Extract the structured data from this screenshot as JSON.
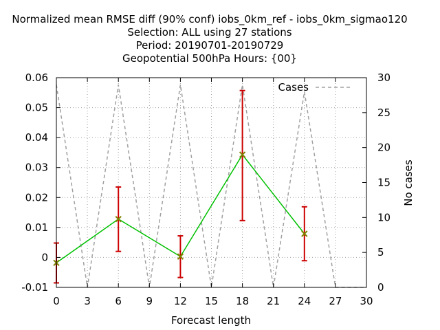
{
  "chart_data": {
    "type": "line",
    "title_lines": [
      "Normalized mean RMSE diff (90% conf) iobs_0km_ref - iobs_0km_sigmao120",
      "Selection: ALL using    27 stations",
      "Period: 20190701-20190729",
      "Geopotential 500hPa   Hours: {00}"
    ],
    "xlabel": "Forecast length",
    "ylabel": "",
    "y2label": "No cases",
    "xlim": [
      0,
      30
    ],
    "ylim": [
      -0.01,
      0.06
    ],
    "y2lim": [
      0,
      30
    ],
    "x_ticks": [
      "0",
      "3",
      "6",
      "9",
      "12",
      "15",
      "18",
      "21",
      "24",
      "27",
      "30"
    ],
    "y_ticks": [
      "-0.01",
      "0",
      "0.01",
      "0.02",
      "0.03",
      "0.04",
      "0.05",
      "0.06"
    ],
    "y2_ticks": [
      "0",
      "5",
      "10",
      "15",
      "20",
      "25",
      "30"
    ],
    "grid": true,
    "series": [
      {
        "name": "",
        "color": "#00c000",
        "marker_color": "#808000",
        "errorbar_color": "#cc0000",
        "x": [
          0,
          6,
          12,
          18,
          24
        ],
        "y": [
          -0.0018,
          0.0128,
          0.0003,
          0.0343,
          0.0079
        ],
        "err_low": [
          -0.0085,
          0.002,
          -0.0067,
          0.0123,
          -0.0011
        ],
        "err_high": [
          0.0048,
          0.0235,
          0.0072,
          0.0557,
          0.0169
        ]
      },
      {
        "name": "Cases",
        "axis": "y2",
        "color": "#a0a0a0",
        "dash": true,
        "x": [
          0,
          3,
          6,
          9,
          12,
          15,
          18,
          21,
          24,
          27,
          30
        ],
        "y": [
          29,
          0,
          29,
          0,
          29,
          0,
          29,
          0,
          28,
          0,
          0
        ]
      }
    ],
    "legend": "top-right"
  }
}
